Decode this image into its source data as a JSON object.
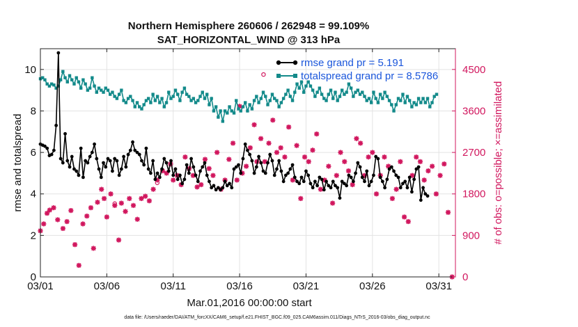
{
  "chart_data": {
    "type": "line",
    "title": "Northern Hemisphere 260606 / 262948 = 99.109%",
    "subtitle": "SAT_HORIZONTAL_WIND @ 313 hPa",
    "xlabel": "Mar.01,2016 00:00:00 start",
    "ylabel_left": "rmse and totalspread",
    "ylabel_right": "# of obs: o=possible; ×=assimilated",
    "footnote": "data file: /Users/raeder/DAI/ATM_forcXX/CAM6_setup/f.e21.FHIST_BGC.f09_025.CAM6assim.011/Diags_NTrS_2016-03/obs_diag_output.nc",
    "x_range": [
      0,
      31.25
    ],
    "x_ticks": [
      0,
      5,
      10,
      15,
      20,
      25,
      30
    ],
    "x_tick_labels": [
      "03/01",
      "03/06",
      "03/11",
      "03/16",
      "03/21",
      "03/26",
      "03/31"
    ],
    "ylim_left": [
      0,
      11
    ],
    "y_ticks_left": [
      "0",
      "2",
      "4",
      "6",
      "8",
      "10"
    ],
    "ylim_right": [
      0,
      4950
    ],
    "y_ticks_right": [
      "0",
      "900",
      "1800",
      "2700",
      "3600",
      "4500"
    ],
    "grid": true,
    "legend_position": "top-right",
    "colors": {
      "rmse": "#000000",
      "spread": "#138a8a",
      "obs": "#d1175e",
      "legend_text": "#1a56db"
    },
    "series": [
      {
        "name": "rmse grand pr = 5.191",
        "color": "#000000",
        "values": [
          6.4,
          6.35,
          6.3,
          6.2,
          5.85,
          5.9,
          6.1,
          7.3,
          10.8,
          5.7,
          5.5,
          6.9,
          5.6,
          5.3,
          5.8,
          5.2,
          5.1,
          4.9,
          6.2,
          4.8,
          5.6,
          5.5,
          5.8,
          6.0,
          6.4,
          5.7,
          5.2,
          4.8,
          5.5,
          5.3,
          5.7,
          5.6,
          5.1,
          5.7,
          5.6,
          4.9,
          5.2,
          5.8,
          5.3,
          5.9,
          6.1,
          6.5,
          6.1,
          6.0,
          5.9,
          5.6,
          5.4,
          6.2,
          5.2,
          5.0,
          5.6,
          4.7,
          5.0,
          4.8,
          5.2,
          5.7,
          5.5,
          5.1,
          5.6,
          4.9,
          5.2,
          4.7,
          4.9,
          4.5,
          4.7,
          5.4,
          5.0,
          5.7,
          5.3,
          4.9,
          4.6,
          5.1,
          5.3,
          5.5,
          4.9,
          4.6,
          4.3,
          4.4,
          4.2,
          4.3,
          4.2,
          4.3,
          4.6,
          4.4,
          4.5,
          4.3,
          5.2,
          5.3,
          5.4,
          5.0,
          5.7,
          6.4,
          6.1,
          5.9,
          5.6,
          5.0,
          5.3,
          5.8,
          5.5,
          5.1,
          5.0,
          5.5,
          5.9,
          5.6,
          4.9,
          5.2,
          5.6,
          5.1,
          4.6,
          4.9,
          5.0,
          5.2,
          5.4,
          4.8,
          4.6,
          4.5,
          4.8,
          4.6,
          5.1,
          4.9,
          4.5,
          4.3,
          4.6,
          4.4,
          4.8,
          4.7,
          4.2,
          4.6,
          4.4,
          4.3,
          4.6,
          4.4,
          4.3,
          3.8,
          4.6,
          4.5,
          4.4,
          4.9,
          4.8,
          4.6,
          5.0,
          5.5,
          5.3,
          4.8,
          4.6,
          5.1,
          4.4,
          4.6,
          4.9,
          5.8,
          5.7,
          4.8,
          4.6,
          4.3,
          4.7,
          5.2,
          5.3,
          5.1,
          4.9,
          4.8,
          4.3,
          4.5,
          4.6,
          4.3,
          4.8,
          4.1,
          4.7,
          5.2,
          5.3,
          3.7,
          4.3,
          4.0,
          3.9
        ],
        "note": "stepped every 0.1695 days starting at 0"
      },
      {
        "name": "totalspread grand pr = 8.5786",
        "color": "#138a8a",
        "values": [
          9.55,
          9.6,
          9.5,
          9.3,
          9.2,
          9.3,
          9.25,
          9.1,
          9.2,
          9.5,
          9.9,
          9.6,
          9.4,
          9.7,
          9.5,
          9.3,
          9.6,
          9.4,
          9.1,
          9.5,
          9.3,
          9.0,
          9.1,
          9.6,
          9.2,
          8.9,
          9.1,
          9.0,
          8.9,
          9.1,
          9.0,
          8.8,
          8.9,
          8.7,
          8.6,
          8.8,
          9.0,
          8.5,
          8.4,
          8.6,
          8.7,
          8.5,
          8.2,
          8.4,
          8.2,
          8.1,
          8.3,
          8.5,
          8.6,
          8.4,
          8.8,
          8.5,
          8.7,
          8.4,
          8.6,
          8.2,
          8.4,
          8.9,
          8.6,
          8.7,
          9.0,
          8.8,
          8.5,
          8.9,
          9.1,
          8.8,
          8.7,
          8.5,
          8.6,
          8.4,
          8.5,
          8.7,
          8.9,
          8.6,
          8.8,
          8.3,
          8.6,
          8.0,
          8.2,
          7.7,
          8.0,
          7.5,
          8.0,
          7.9,
          8.2,
          8.0,
          7.9,
          8.5,
          8.1,
          8.0,
          8.2,
          8.4,
          8.0,
          8.3,
          8.1,
          8.5,
          8.7,
          8.4,
          8.6,
          8.9,
          8.7,
          8.3,
          8.5,
          8.8,
          8.6,
          8.5,
          8.2,
          8.4,
          8.6,
          8.8,
          9.0,
          8.7,
          8.5,
          8.9,
          9.3,
          9.1,
          9.4,
          8.9,
          9.2,
          9.4,
          9.2,
          9.0,
          8.7,
          8.9,
          9.1,
          8.8,
          8.6,
          8.5,
          8.8,
          9.0,
          8.6,
          8.9,
          8.5,
          8.7,
          9.0,
          8.8,
          8.9,
          9.3,
          9.1,
          8.7,
          8.9,
          9.0,
          8.8,
          8.9,
          8.7,
          8.5,
          8.6,
          8.4,
          8.9,
          8.6,
          8.4,
          8.8,
          8.6,
          8.9,
          8.7,
          8.5,
          8.3,
          8.0,
          8.3,
          8.6,
          8.5,
          8.8,
          8.4,
          8.7,
          8.5,
          8.2,
          8.4,
          8.3,
          8.6,
          8.4,
          8.6,
          8.4,
          8.6,
          8.2,
          8.4,
          8.7,
          8.8
        ],
        "note": "stepped every 0.1695 days starting at 0"
      },
      {
        "name": "# of obs (assimilated)",
        "color": "#d1175e",
        "axis": "right",
        "x": [
          0,
          0.25,
          0.5,
          0.7,
          1.0,
          1.3,
          1.7,
          2.0,
          2.3,
          2.6,
          2.9,
          3.2,
          3.5,
          3.8,
          4.0,
          4.3,
          4.6,
          4.8,
          5.0,
          5.3,
          5.6,
          5.9,
          6.1,
          6.4,
          6.7,
          7.0,
          7.3,
          7.6,
          7.9,
          8.2,
          8.5,
          8.8,
          9.2,
          9.5,
          9.8,
          10.0,
          10.3,
          10.6,
          10.9,
          11.2,
          11.5,
          11.8,
          12.1,
          12.4,
          12.7,
          13.0,
          13.3,
          13.6,
          13.9,
          14.2,
          14.5,
          14.8,
          15.0,
          15.2,
          15.5,
          15.8,
          16.1,
          16.3,
          16.6,
          16.9,
          17.2,
          17.5,
          17.8,
          18.1,
          18.4,
          18.7,
          19.0,
          19.3,
          19.6,
          19.9,
          20.2,
          20.5,
          20.8,
          21.1,
          21.4,
          21.7,
          22.0,
          22.3,
          22.6,
          22.9,
          23.2,
          23.5,
          23.8,
          24.1,
          24.4,
          24.7,
          25.0,
          25.3,
          25.6,
          25.9,
          26.2,
          26.5,
          26.8,
          27.1,
          27.4,
          27.7,
          28.0,
          28.3,
          28.6,
          28.9,
          29.2,
          29.5,
          29.8,
          30.1,
          30.4,
          30.7,
          31.0
        ],
        "values": [
          1000,
          1150,
          1380,
          1450,
          1500,
          1240,
          1050,
          1200,
          1440,
          700,
          250,
          1150,
          1320,
          1500,
          620,
          1620,
          1900,
          1700,
          1300,
          1800,
          1550,
          800,
          1600,
          1420,
          1700,
          1550,
          1250,
          1700,
          1750,
          1650,
          1900,
          2100,
          2300,
          2250,
          2450,
          2100,
          2200,
          2000,
          2600,
          2350,
          2200,
          1950,
          2000,
          2550,
          2350,
          2200,
          2700,
          1900,
          2100,
          2550,
          2900,
          2100,
          3700,
          2250,
          2400,
          2800,
          3300,
          2500,
          3000,
          2500,
          2900,
          3400,
          2700,
          2800,
          2600,
          3250,
          2100,
          2850,
          1700,
          2600,
          2500,
          2750,
          3100,
          1900,
          2100,
          2400,
          1600,
          2200,
          2700,
          2500,
          2300,
          2000,
          3000,
          2900,
          2200,
          2600,
          2700,
          1800,
          2200,
          2600,
          2400,
          1700,
          1900,
          2500,
          1300,
          1200,
          2200,
          2600,
          2500,
          2100,
          2300,
          2400,
          1800,
          2200,
          2450,
          1400,
          0
        ],
        "note": "x in days since 03/01"
      }
    ],
    "obs_possible_extra": [
      {
        "x": 16.8,
        "value": 4300
      },
      {
        "x": 5.6,
        "value": 1500
      },
      {
        "x": 8.8,
        "value": 1950
      }
    ]
  }
}
